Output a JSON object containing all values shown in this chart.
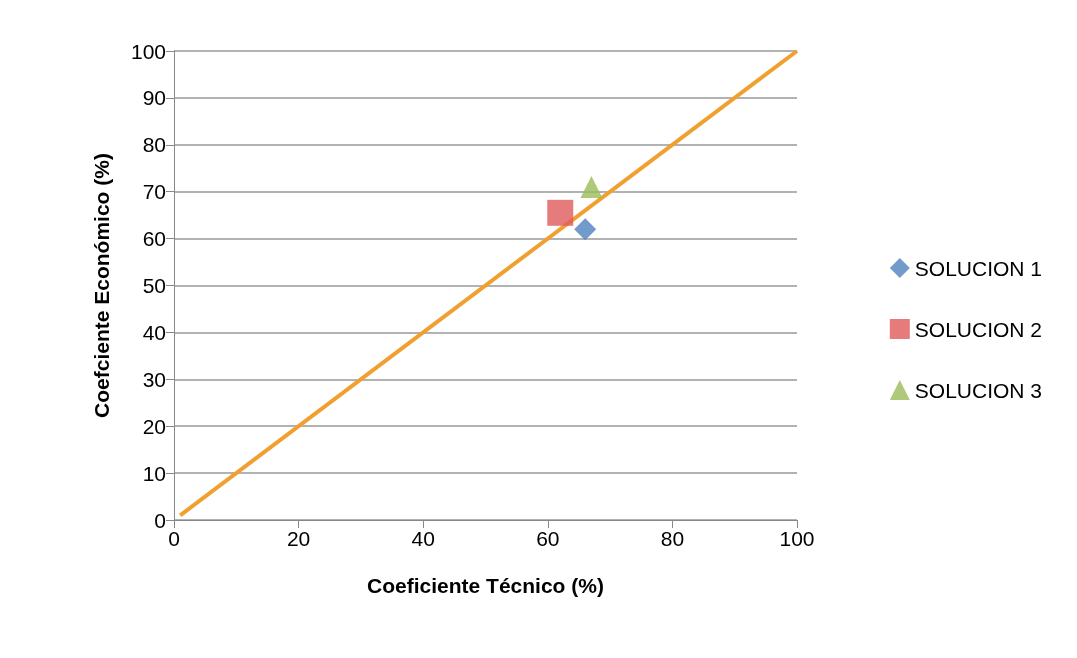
{
  "chart_data": {
    "type": "scatter",
    "xlabel": "Coeficiente Técnico (%)",
    "ylabel": "Coefciente Económico (%)",
    "xlim": [
      0,
      100
    ],
    "xticks": [
      0,
      20,
      40,
      60,
      80,
      100
    ],
    "ylim": [
      0,
      100
    ],
    "yticks": [
      0,
      10,
      20,
      30,
      40,
      50,
      60,
      70,
      80,
      90,
      100
    ],
    "grid": "y",
    "legend": "right",
    "series": [
      {
        "name": "SOLUCION 1",
        "color": "#4f81bd",
        "marker": "diamond",
        "x": [
          66
        ],
        "values": [
          62
        ]
      },
      {
        "name": "SOLUCION 2",
        "color": "#e05a5a",
        "marker": "square",
        "x": [
          62
        ],
        "values": [
          65.5
        ]
      },
      {
        "name": "SOLUCION 3",
        "color": "#9bbb59",
        "marker": "triangle",
        "x": [
          67
        ],
        "values": [
          71
        ]
      },
      {
        "type": "line",
        "color": "#f0a030",
        "marker": "none",
        "x": [
          1,
          100
        ],
        "values": [
          1,
          100
        ]
      }
    ]
  }
}
